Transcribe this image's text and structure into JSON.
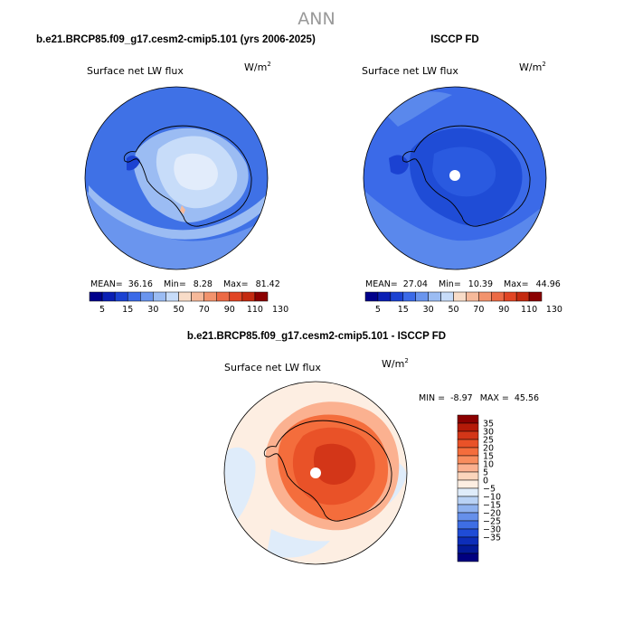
{
  "figure": {
    "title": "ANN"
  },
  "panels": [
    {
      "header": "b.e21.BRCP85.f09_g17.cesm2-cmip5.101 (yrs 2006-2025)",
      "variable": "Surface net LW flux",
      "units": "W/m",
      "units_sup": "2",
      "stats": {
        "mean_label": "MEAN=",
        "mean": "36.16",
        "min_label": "Min=",
        "min": "8.28",
        "max_label": "Max=",
        "max": "81.42"
      }
    },
    {
      "header": "ISCCP FD",
      "variable": "Surface net LW flux",
      "units": "W/m",
      "units_sup": "2",
      "stats": {
        "mean_label": "MEAN=",
        "mean": "27.04",
        "min_label": "Min=",
        "min": "10.39",
        "max_label": "Max=",
        "max": "44.96"
      }
    },
    {
      "header": "b.e21.BRCP85.f09_g17.cesm2-cmip5.101 - ISCCP FD",
      "variable": "Surface net LW flux",
      "units": "W/m",
      "units_sup": "2",
      "stats": {
        "min_label": "MIN =",
        "min": "-8.97",
        "max_label": "MAX =",
        "max": "45.56"
      }
    }
  ],
  "colorbar_horizontal": {
    "colors": [
      "#00008b",
      "#0a1fb4",
      "#1b42d2",
      "#3b6ae8",
      "#6a95ee",
      "#9bbcf3",
      "#c7dcf9",
      "#f8dcc8",
      "#f6b99a",
      "#f2936d",
      "#ec6a45",
      "#e14524",
      "#c42a10",
      "#8b0000"
    ],
    "labels": [
      "5",
      "15",
      "30",
      "50",
      "70",
      "90",
      "110",
      "130"
    ]
  },
  "colorbar_vertical": {
    "colors": [
      "#8b0000",
      "#b51a08",
      "#d33618",
      "#e95228",
      "#f46d3c",
      "#f88d5e",
      "#fbb190",
      "#fcd5bc",
      "#fdeee2",
      "#dfecfa",
      "#b9d2f5",
      "#8fb2ef",
      "#6690ea",
      "#3e6ee4",
      "#1f4cd6",
      "#0d2eb9",
      "#031a98",
      "#000080"
    ],
    "labels": [
      "35",
      "30",
      "25",
      "20",
      "15",
      "10",
      "5",
      "0",
      "−5",
      "−10",
      "−15",
      "−20",
      "−25",
      "−30",
      "−35"
    ]
  },
  "chart_data": [
    {
      "type": "heatmap",
      "title": "b.e21.BRCP85.f09_g17.cesm2-cmip5.101 (yrs 2006-2025)",
      "subtitle": "Surface net LW flux",
      "units": "W/m2",
      "projection": "south polar stereographic",
      "mean": 36.16,
      "min": 8.28,
      "max": 81.42,
      "levels": [
        5,
        10,
        15,
        20,
        30,
        40,
        50,
        60,
        70,
        80,
        90,
        100,
        110,
        120,
        130
      ]
    },
    {
      "type": "heatmap",
      "title": "ISCCP FD",
      "subtitle": "Surface net LW flux",
      "units": "W/m2",
      "projection": "south polar stereographic",
      "mean": 27.04,
      "min": 10.39,
      "max": 44.96,
      "levels": [
        5,
        10,
        15,
        20,
        30,
        40,
        50,
        60,
        70,
        80,
        90,
        100,
        110,
        120,
        130
      ]
    },
    {
      "type": "heatmap",
      "title": "b.e21.BRCP85.f09_g17.cesm2-cmip5.101 - ISCCP FD",
      "subtitle": "Surface net LW flux",
      "units": "W/m2",
      "projection": "south polar stereographic",
      "min": -8.97,
      "max": 45.56,
      "levels": [
        -35,
        -30,
        -25,
        -20,
        -15,
        -10,
        -5,
        0,
        5,
        10,
        15,
        20,
        25,
        30,
        35
      ]
    }
  ]
}
